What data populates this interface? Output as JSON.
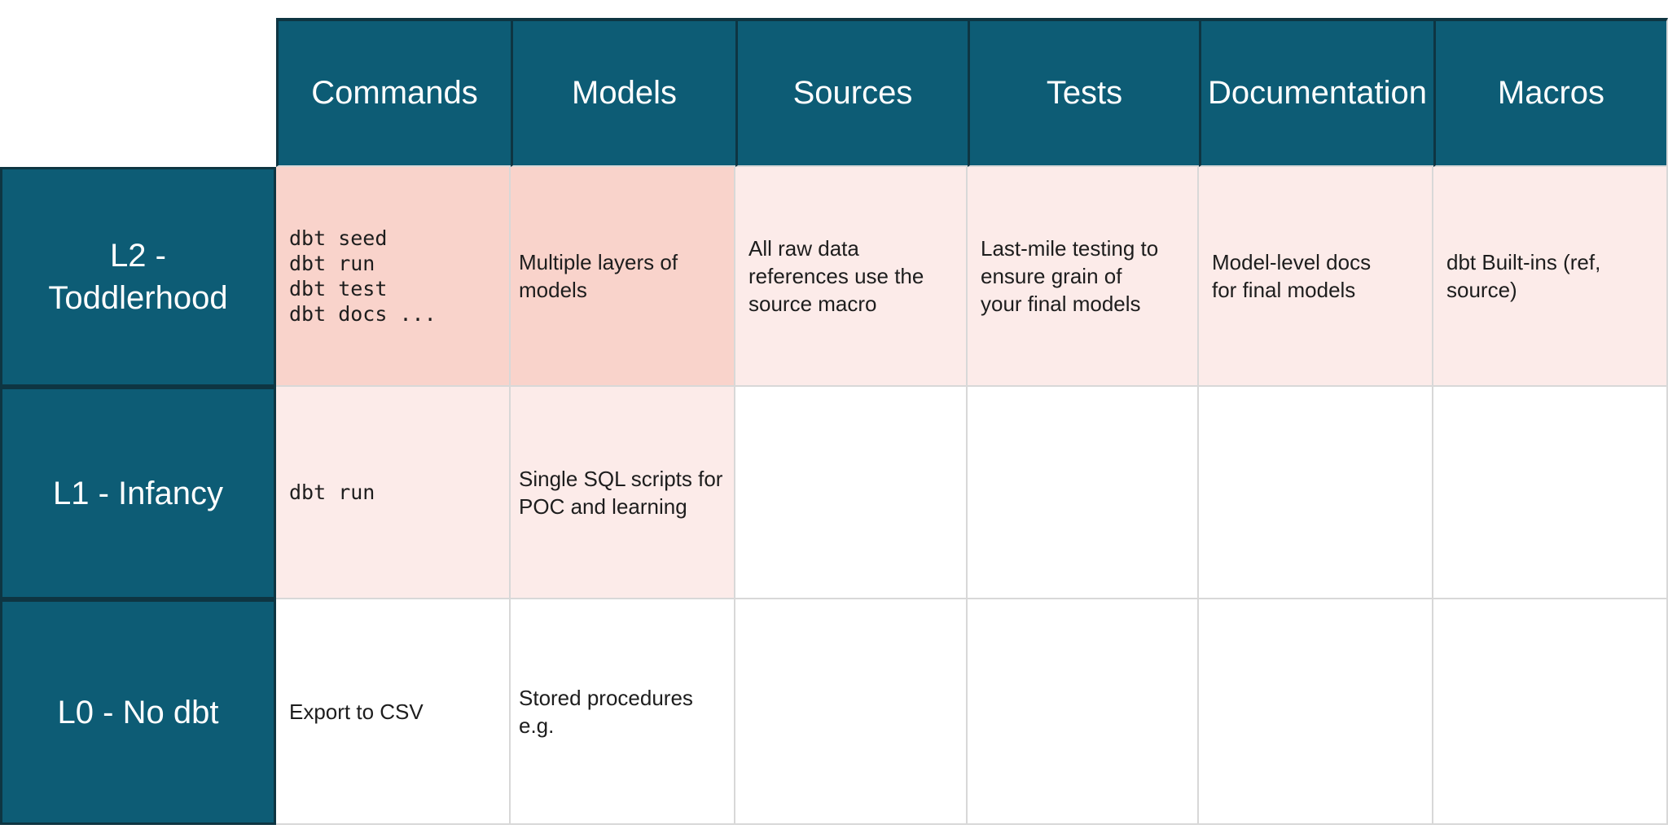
{
  "colors": {
    "header_teal": "#0d5c75",
    "teal_border": "#0e3542",
    "salmon_cell": "#f9d3cb",
    "pink_cell": "#fcebe9",
    "grid_line": "#d8d8d8",
    "body_text": "#1d1d1d",
    "header_text": "#ffffff"
  },
  "table": {
    "columns": [
      "Commands",
      "Models",
      "Sources",
      "Tests",
      "Documentation",
      "Macros"
    ],
    "rows": [
      {
        "label": "L2 - Toddlerhood",
        "cells": [
          {
            "lines": [
              "dbt seed",
              "dbt run",
              "dbt test",
              "dbt docs ..."
            ],
            "mono": true,
            "bg": "salmon"
          },
          {
            "lines": [
              "Multiple layers of",
              "models"
            ],
            "mono": false,
            "bg": "salmon"
          },
          {
            "lines": [
              "All raw data",
              "references use the",
              "source macro"
            ],
            "mono": false,
            "bg": "pink"
          },
          {
            "lines": [
              "Last-mile testing to",
              "ensure grain of",
              "your final models"
            ],
            "mono": false,
            "bg": "pink"
          },
          {
            "lines": [
              "Model-level docs",
              "for final models"
            ],
            "mono": false,
            "bg": "pink"
          },
          {
            "lines": [
              "dbt Built-ins (ref,",
              "source)"
            ],
            "mono": false,
            "bg": "pink"
          }
        ]
      },
      {
        "label": "L1 - Infancy",
        "cells": [
          {
            "lines": [
              "dbt run"
            ],
            "mono": true,
            "bg": "pink"
          },
          {
            "lines": [
              "Single SQL scripts for",
              "POC and learning"
            ],
            "mono": false,
            "bg": "pink"
          },
          {
            "lines": [],
            "mono": false,
            "bg": "white"
          },
          {
            "lines": [],
            "mono": false,
            "bg": "white"
          },
          {
            "lines": [],
            "mono": false,
            "bg": "white"
          },
          {
            "lines": [],
            "mono": false,
            "bg": "white"
          }
        ]
      },
      {
        "label": "L0 - No dbt",
        "cells": [
          {
            "lines": [
              "Export to CSV"
            ],
            "mono": false,
            "bg": "white"
          },
          {
            "lines": [
              "Stored procedures",
              "e.g."
            ],
            "mono": false,
            "bg": "white"
          },
          {
            "lines": [],
            "mono": false,
            "bg": "white"
          },
          {
            "lines": [],
            "mono": false,
            "bg": "white"
          },
          {
            "lines": [],
            "mono": false,
            "bg": "white"
          },
          {
            "lines": [],
            "mono": false,
            "bg": "white"
          }
        ]
      }
    ]
  }
}
